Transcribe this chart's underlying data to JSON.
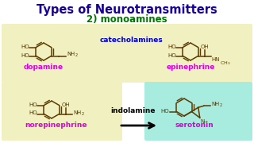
{
  "title": "Types of Neurotransmitters",
  "subtitle": "2) monoamines",
  "title_color": "#1a0096",
  "subtitle_color": "#007700",
  "bg_color": "#ffffff",
  "panel_color_yellow": "#f0f0c0",
  "panel_color_cyan": "#a8ece0",
  "catecholamines_color": "#0000cc",
  "indolamine_color": "#000000",
  "dopamine_color": "#dd00dd",
  "epinephrine_color": "#dd00dd",
  "norepinephrine_color": "#dd00dd",
  "serotonin_color": "#dd00dd",
  "molecule_color": "#5c3a00",
  "label_catecholamines": "catecholamines",
  "label_indolamine": "indolamine",
  "label_dopamine": "dopamine",
  "label_epinephrine": "epinephrine",
  "label_norepinephrine": "norepinephrine",
  "label_serotonin": "serotonin"
}
